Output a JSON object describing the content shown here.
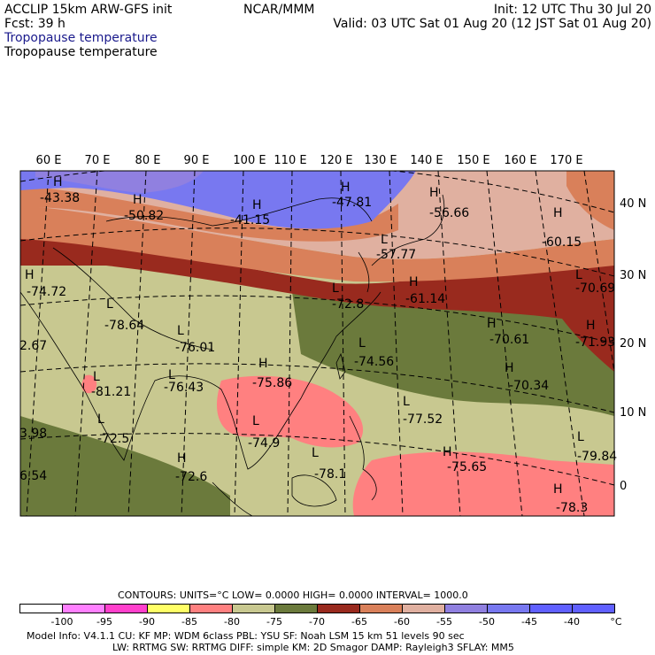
{
  "header": {
    "model": "ACCLIP 15km ARW-GFS init",
    "forecast": "Fcst:    39 h",
    "center": "NCAR/MMM",
    "init": "Init: 12 UTC Thu 30 Jul 20",
    "valid": "Valid: 03 UTC Sat 01 Aug 20 (12 JST Sat 01 Aug 20)",
    "field_line1": "Tropopause temperature",
    "field_line2": "Tropopause temperature",
    "field_line1_color": "#1a1a8c"
  },
  "map": {
    "lon_labels": [
      "60 E",
      "70 E",
      "80 E",
      "90 E",
      "100 E",
      "110 E",
      "120 E",
      "130 E",
      "140 E",
      "150 E",
      "160 E",
      "170 E"
    ],
    "lat_labels": [
      "40 N",
      "30 N",
      "20 N",
      "10 N",
      "0"
    ],
    "colors": {
      "c_minus100": "#ffffff",
      "c_minus95": "#ff80ff",
      "c_minus90": "#ff40cc",
      "c_minus85": "#ffff66",
      "c_minus80": "#ff8080",
      "c_minus75": "#c8c890",
      "c_minus70": "#6b7a3c",
      "c_minus65": "#992a1e",
      "c_minus60": "#d9805a",
      "c_minus55": "#e0b0a0",
      "c_minus50": "#9080e0",
      "c_minus45": "#7878f0",
      "c_minus40": "#6060ff"
    },
    "highs_lows": [
      {
        "mark": "H",
        "value": "-43.38"
      },
      {
        "mark": "H",
        "value": "-50.82"
      },
      {
        "mark": "H",
        "value": "-41.15"
      },
      {
        "mark": "H",
        "value": "-47.81"
      },
      {
        "mark": "H",
        "value": "-56.66"
      },
      {
        "mark": "H",
        "value": "-60.15"
      },
      {
        "mark": "L",
        "value": "-57.77"
      },
      {
        "mark": "H",
        "value": "-74.72"
      },
      {
        "mark": "L",
        "value": "-78.64"
      },
      {
        "mark": "L",
        "value": "-72.8"
      },
      {
        "mark": "H",
        "value": "-61.14"
      },
      {
        "mark": "L",
        "value": "-70.69"
      },
      {
        "mark": "L",
        "value": "-76.01"
      },
      {
        "mark": "L",
        "value": "-74.56"
      },
      {
        "mark": "H",
        "value": "-70.61"
      },
      {
        "mark": "H",
        "value": "-71.93"
      },
      {
        "mark": "L",
        "value": "-81.21"
      },
      {
        "mark": "L",
        "value": "-76.43"
      },
      {
        "mark": "H",
        "value": "-75.86"
      },
      {
        "mark": "H",
        "value": "-70.34"
      },
      {
        "mark": "L",
        "value": "-77.52"
      },
      {
        "mark": "L",
        "value": "-72.5"
      },
      {
        "mark": "L",
        "value": "-74.9"
      },
      {
        "mark": "H",
        "value": "-75.65"
      },
      {
        "mark": "L",
        "value": "-79.84"
      },
      {
        "mark": "H",
        "value": "-72.6"
      },
      {
        "mark": "L",
        "value": "-78.1"
      },
      {
        "mark": "H",
        "value": "-78.3"
      },
      {
        "mark": "",
        "value": "3.98"
      },
      {
        "mark": "",
        "value": "6.54"
      },
      {
        "mark": "",
        "value": "2.67"
      }
    ]
  },
  "contours": {
    "text": "CONTOURS:  UNITS=°C  LOW=  0.0000      HIGH=  0.0000      INTERVAL=  1000.0"
  },
  "colorbar": {
    "labels": [
      "-100",
      "-95",
      "-90",
      "-85",
      "-80",
      "-75",
      "-70",
      "-65",
      "-60",
      "-55",
      "-50",
      "-45",
      "-40"
    ],
    "unit": "°C"
  },
  "model_info": {
    "line1": "Model Info: V4.1.1      CU: KF        MP: WDM 6class   PBL: YSU        SF: Noah LSM      15 km    51 levels    90 sec",
    "line2": "LW: RRTMG    SW: RRTMG   DIFF: simple KM: 2D Smagor DAMP: Rayleigh3  SFLAY: MM5"
  }
}
